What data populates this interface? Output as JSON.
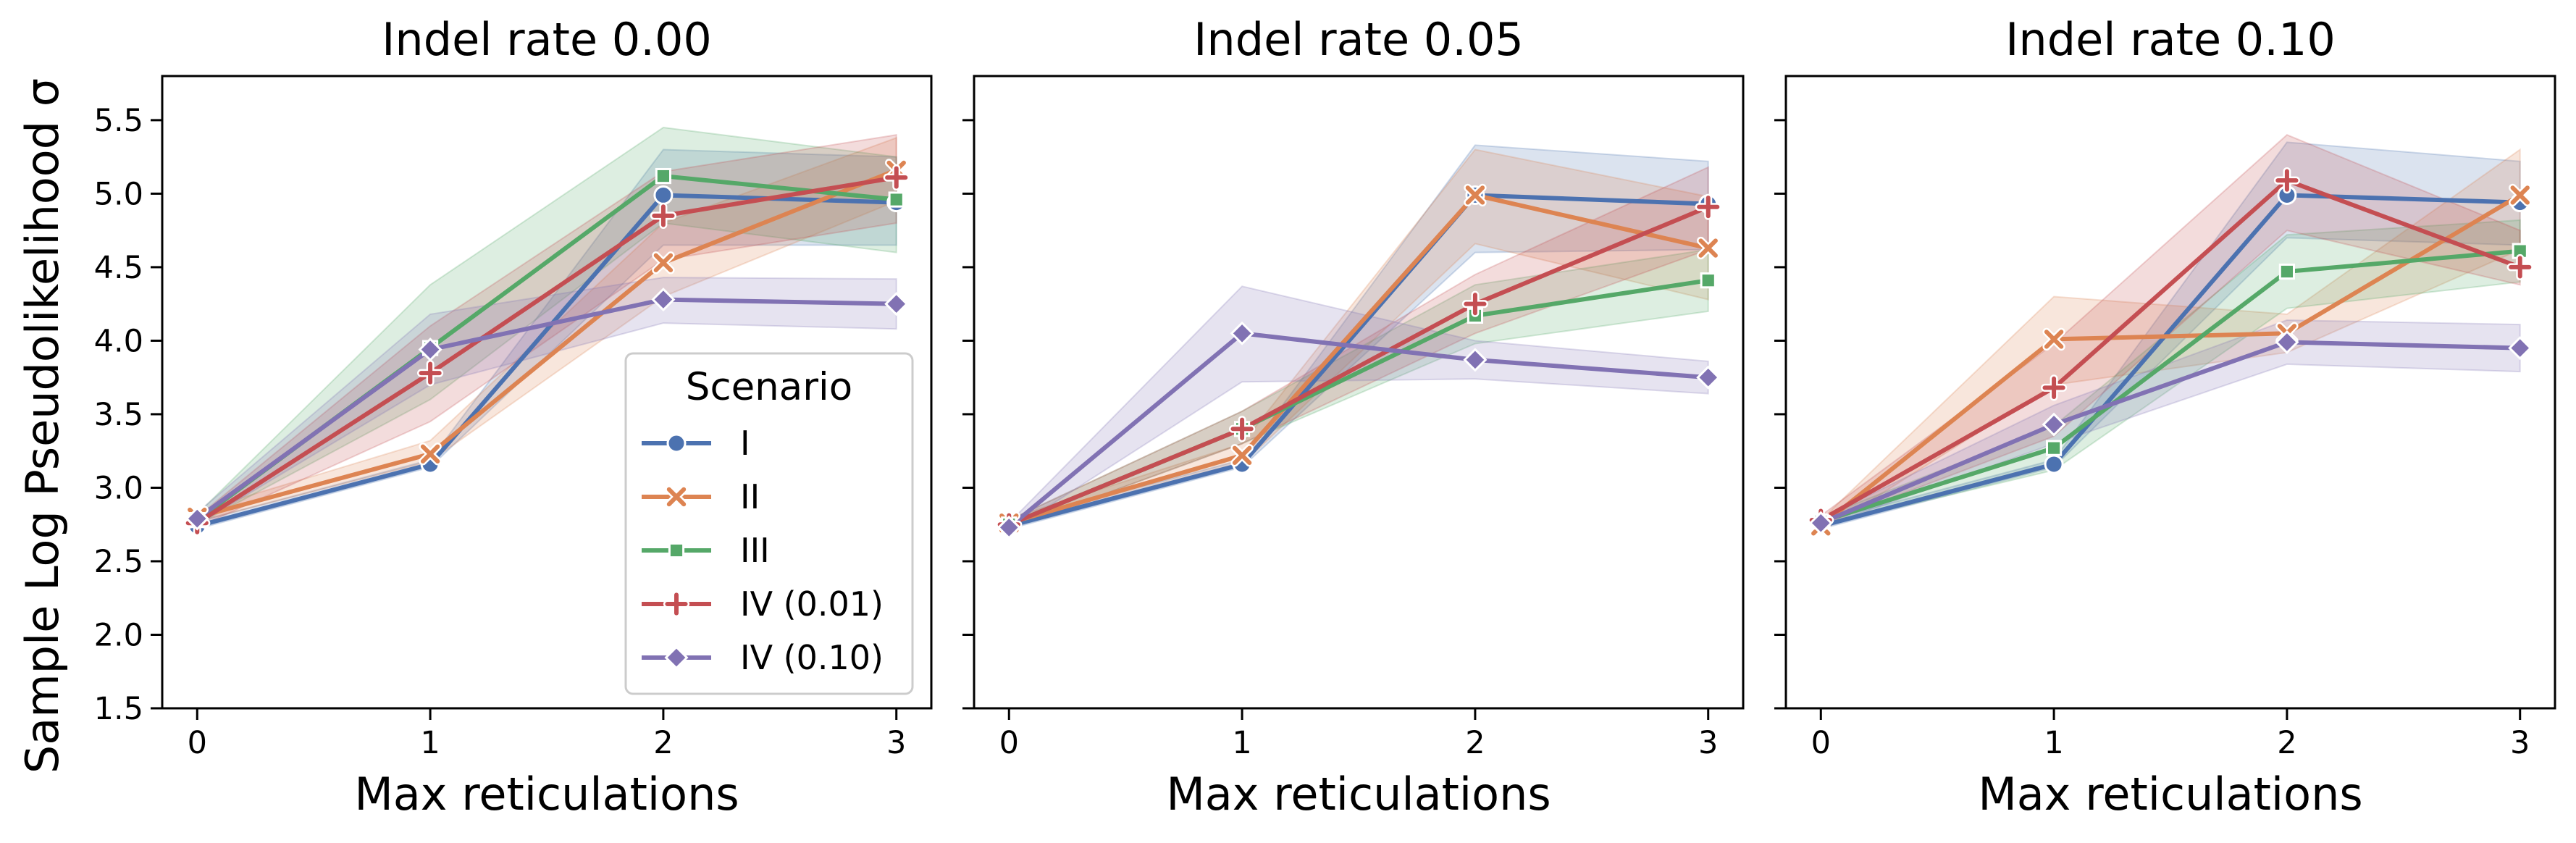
{
  "chart_data": [
    {
      "type": "line",
      "title": "Indel rate 0.00",
      "xlabel": "Max reticulations",
      "ylabel": "Sample Log Pseudolikelihood σ",
      "x": [
        0,
        1,
        2,
        3
      ],
      "xticks": [
        "0",
        "1",
        "2",
        "3"
      ],
      "ylim": [
        1.5,
        5.8
      ],
      "yticks": [
        "1.5",
        "2.0",
        "2.5",
        "3.0",
        "3.5",
        "4.0",
        "4.5",
        "5.0",
        "5.5"
      ],
      "grid": false,
      "legend": {
        "title": "Scenario",
        "placement": "lower-right",
        "entries": [
          "I",
          "II",
          "III",
          "IV (0.01)",
          "IV (0.10)"
        ]
      },
      "series": [
        {
          "name": "I",
          "color": "#4c72b0",
          "marker": "circle",
          "values": [
            2.74,
            3.16,
            4.99,
            4.94
          ],
          "lower": [
            2.72,
            3.14,
            4.65,
            4.65
          ],
          "upper": [
            2.77,
            3.19,
            5.3,
            5.25
          ]
        },
        {
          "name": "II",
          "color": "#dd8452",
          "marker": "x",
          "values": [
            2.8,
            3.23,
            4.53,
            5.16
          ],
          "lower": [
            2.77,
            3.18,
            4.3,
            4.95
          ],
          "upper": [
            2.84,
            3.32,
            4.8,
            5.38
          ]
        },
        {
          "name": "III",
          "color": "#55a868",
          "marker": "square",
          "values": [
            2.78,
            3.95,
            5.12,
            4.96
          ],
          "lower": [
            2.75,
            3.6,
            4.8,
            4.6
          ],
          "upper": [
            2.82,
            4.38,
            5.45,
            5.25
          ]
        },
        {
          "name": "IV (0.01)",
          "color": "#c44e52",
          "marker": "plus",
          "values": [
            2.76,
            3.78,
            4.85,
            5.11
          ],
          "lower": [
            2.73,
            3.45,
            4.55,
            4.8
          ],
          "upper": [
            2.8,
            4.1,
            5.15,
            5.4
          ]
        },
        {
          "name": "IV (0.10)",
          "color": "#8172b3",
          "marker": "diamond",
          "values": [
            2.79,
            3.94,
            4.28,
            4.25
          ],
          "lower": [
            2.75,
            3.7,
            4.12,
            4.08
          ],
          "upper": [
            2.83,
            4.18,
            4.43,
            4.42
          ]
        }
      ]
    },
    {
      "type": "line",
      "title": "Indel rate 0.05",
      "xlabel": "Max reticulations",
      "x": [
        0,
        1,
        2,
        3
      ],
      "xticks": [
        "0",
        "1",
        "2",
        "3"
      ],
      "ylim": [
        1.5,
        5.8
      ],
      "grid": false,
      "series": [
        {
          "name": "I",
          "color": "#4c72b0",
          "marker": "circle",
          "values": [
            2.74,
            3.16,
            4.99,
            4.93
          ],
          "lower": [
            2.72,
            3.14,
            4.6,
            4.62
          ],
          "upper": [
            2.77,
            3.19,
            5.33,
            5.22
          ]
        },
        {
          "name": "II",
          "color": "#dd8452",
          "marker": "x",
          "values": [
            2.76,
            3.22,
            4.99,
            4.63
          ],
          "lower": [
            2.73,
            3.16,
            4.66,
            4.28
          ],
          "upper": [
            2.79,
            3.3,
            5.3,
            4.98
          ]
        },
        {
          "name": "III",
          "color": "#55a868",
          "marker": "square",
          "values": [
            2.75,
            3.4,
            4.17,
            4.41
          ],
          "lower": [
            2.72,
            3.3,
            3.98,
            4.2
          ],
          "upper": [
            2.78,
            3.52,
            4.38,
            4.62
          ]
        },
        {
          "name": "IV (0.01)",
          "color": "#c44e52",
          "marker": "plus",
          "values": [
            2.75,
            3.4,
            4.25,
            4.91
          ],
          "lower": [
            2.72,
            3.3,
            4.05,
            4.62
          ],
          "upper": [
            2.78,
            3.52,
            4.45,
            5.18
          ]
        },
        {
          "name": "IV (0.10)",
          "color": "#8172b3",
          "marker": "diamond",
          "values": [
            2.73,
            4.05,
            3.87,
            3.75
          ],
          "lower": [
            2.7,
            3.72,
            3.74,
            3.64
          ],
          "upper": [
            2.76,
            4.37,
            4.0,
            3.86
          ]
        }
      ]
    },
    {
      "type": "line",
      "title": "Indel rate 0.10",
      "xlabel": "Max reticulations",
      "x": [
        0,
        1,
        2,
        3
      ],
      "xticks": [
        "0",
        "1",
        "2",
        "3"
      ],
      "ylim": [
        1.5,
        5.8
      ],
      "grid": false,
      "series": [
        {
          "name": "I",
          "color": "#4c72b0",
          "marker": "circle",
          "values": [
            2.74,
            3.16,
            4.99,
            4.94
          ],
          "lower": [
            2.72,
            3.14,
            4.7,
            4.65
          ],
          "upper": [
            2.77,
            3.19,
            5.35,
            5.22
          ]
        },
        {
          "name": "II",
          "color": "#dd8452",
          "marker": "x",
          "values": [
            2.74,
            4.01,
            4.05,
            4.99
          ],
          "lower": [
            2.7,
            3.7,
            3.92,
            4.62
          ],
          "upper": [
            2.78,
            4.3,
            4.18,
            5.3
          ]
        },
        {
          "name": "III",
          "color": "#55a868",
          "marker": "square",
          "values": [
            2.77,
            3.27,
            4.47,
            4.61
          ],
          "lower": [
            2.74,
            3.12,
            4.22,
            4.4
          ],
          "upper": [
            2.8,
            3.42,
            4.72,
            4.82
          ]
        },
        {
          "name": "IV (0.01)",
          "color": "#c44e52",
          "marker": "plus",
          "values": [
            2.78,
            3.68,
            5.09,
            4.5
          ],
          "lower": [
            2.75,
            3.35,
            4.75,
            4.38
          ],
          "upper": [
            2.81,
            3.98,
            5.4,
            4.75
          ]
        },
        {
          "name": "IV (0.10)",
          "color": "#8172b3",
          "marker": "diamond",
          "values": [
            2.76,
            3.43,
            3.99,
            3.95
          ],
          "lower": [
            2.73,
            3.3,
            3.84,
            3.79
          ],
          "upper": [
            2.79,
            3.56,
            4.14,
            4.11
          ]
        }
      ]
    }
  ]
}
